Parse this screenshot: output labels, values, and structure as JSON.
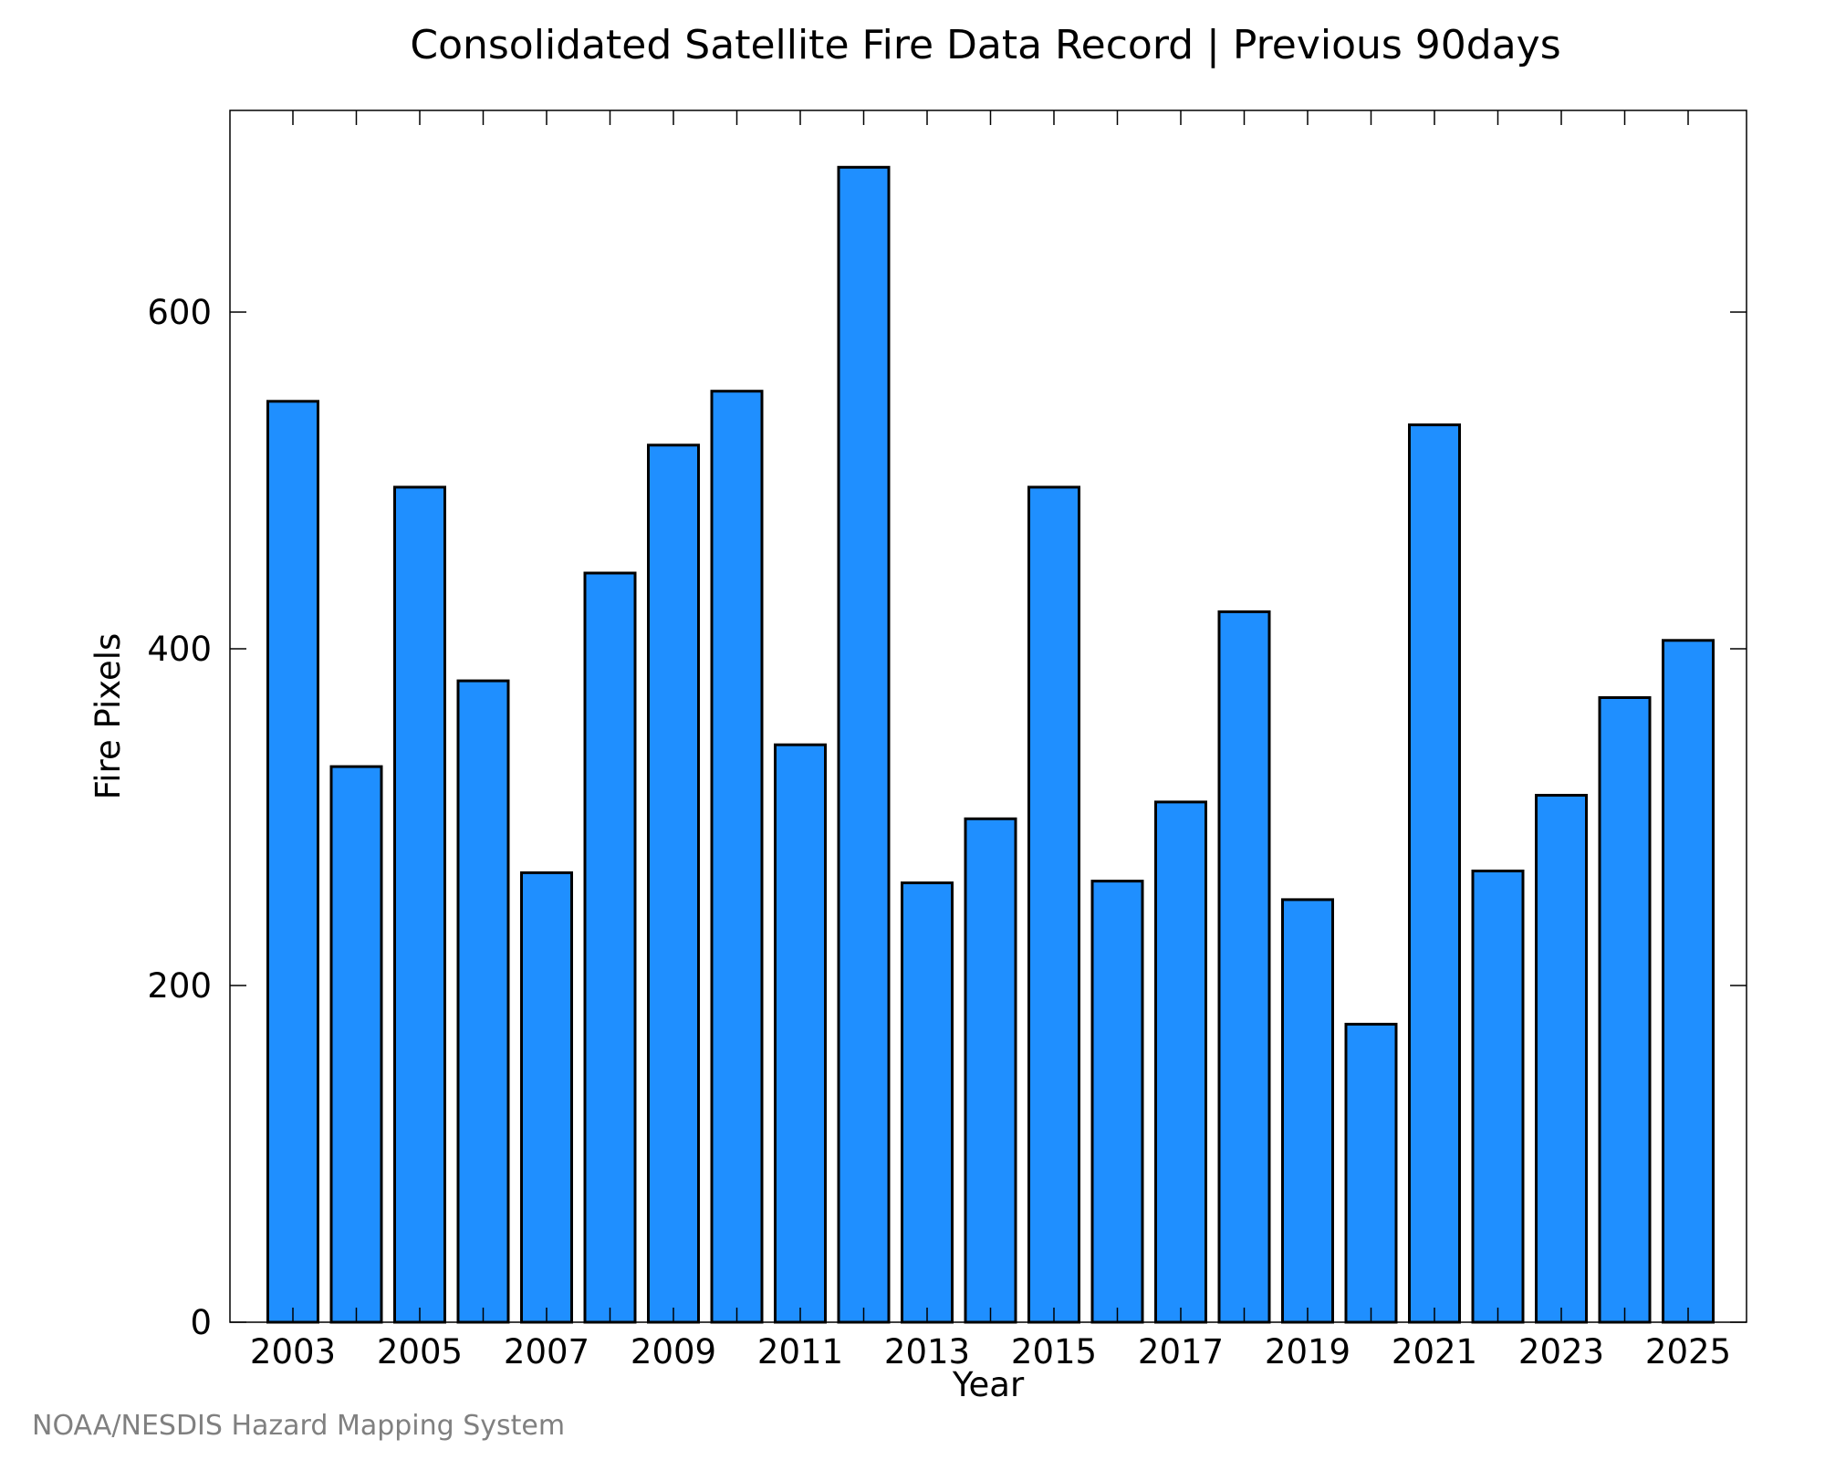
{
  "chart_data": {
    "type": "bar",
    "title": "Consolidated Satellite Fire Data Record | Previous 90days",
    "xlabel": "Year",
    "ylabel": "Fire Pixels",
    "ylim": [
      0,
      720
    ],
    "yticks": [
      0,
      200,
      400,
      600
    ],
    "xticks": [
      "2003",
      "2005",
      "2007",
      "2009",
      "2011",
      "2013",
      "2015",
      "2017",
      "2019",
      "2021",
      "2023",
      "2025"
    ],
    "categories": [
      2003,
      2004,
      2005,
      2006,
      2007,
      2008,
      2009,
      2010,
      2011,
      2012,
      2013,
      2014,
      2015,
      2016,
      2017,
      2018,
      2019,
      2020,
      2021,
      2022,
      2023,
      2024,
      2025
    ],
    "values": [
      547,
      330,
      496,
      381,
      267,
      445,
      521,
      553,
      343,
      686,
      261,
      299,
      496,
      262,
      309,
      422,
      251,
      177,
      533,
      268,
      313,
      371,
      405
    ],
    "grid": false,
    "bar_color": "#1f8fff"
  },
  "credit": "NOAA/NESDIS Hazard Mapping System"
}
